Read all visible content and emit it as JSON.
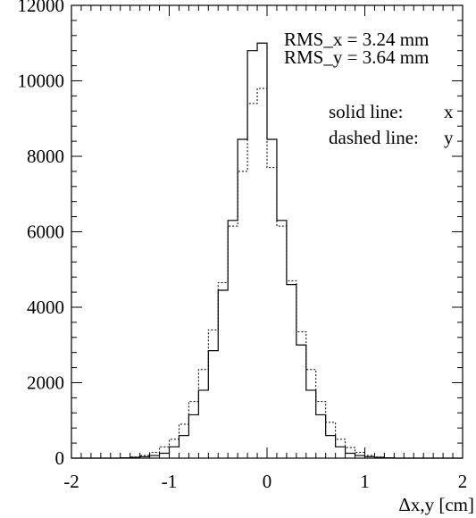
{
  "chart_data": {
    "type": "line",
    "xlabel": "Δx,y  [cm]",
    "ylabel": "",
    "xlim": [
      -2,
      2
    ],
    "ylim": [
      0,
      12000
    ],
    "x_ticks": [
      -2,
      -1,
      0,
      1,
      2
    ],
    "x_tick_labels": [
      "-2",
      "-1",
      "0",
      "1",
      "2"
    ],
    "y_ticks": [
      0,
      2000,
      4000,
      6000,
      8000,
      10000,
      12000
    ],
    "y_tick_labels": [
      "0",
      "2000",
      "4000",
      "6000",
      "8000",
      "10000",
      "12000"
    ],
    "bin_edges": [
      -2.0,
      -1.9,
      -1.8,
      -1.7,
      -1.6,
      -1.5,
      -1.4,
      -1.3,
      -1.2,
      -1.1,
      -1.0,
      -0.9,
      -0.8,
      -0.7,
      -0.6,
      -0.5,
      -0.4,
      -0.3,
      -0.2,
      -0.1,
      0.0,
      0.1,
      0.2,
      0.3,
      0.4,
      0.5,
      0.6,
      0.7,
      0.8,
      0.9,
      1.0,
      1.1,
      1.2,
      1.3,
      1.4,
      1.5,
      1.6,
      1.7,
      1.8,
      1.9,
      2.0
    ],
    "series": [
      {
        "name": "x",
        "style": "solid",
        "values": [
          0,
          0,
          0,
          0,
          0,
          10,
          20,
          40,
          70,
          130,
          300,
          600,
          1150,
          1800,
          2850,
          4450,
          6300,
          8450,
          10800,
          11000,
          8450,
          6300,
          4600,
          3000,
          1800,
          1150,
          600,
          300,
          130,
          70,
          40,
          20,
          10,
          0,
          0,
          0,
          0,
          0,
          0,
          0
        ]
      },
      {
        "name": "y",
        "style": "dashed",
        "values": [
          0,
          0,
          0,
          0,
          0,
          10,
          30,
          70,
          150,
          300,
          500,
          900,
          1500,
          2350,
          3400,
          4650,
          6150,
          7600,
          9400,
          9800,
          7700,
          6150,
          4700,
          3350,
          2350,
          1500,
          950,
          500,
          280,
          150,
          70,
          30,
          10,
          0,
          0,
          0,
          0,
          0,
          0,
          0
        ]
      }
    ]
  },
  "annotations": {
    "rms_x": "RMS_x =  3.24 mm",
    "rms_y": "RMS_y =  3.64 mm",
    "solid_label": "solid line:",
    "solid_value": "x",
    "dashed_label": "dashed line:",
    "dashed_value": "y"
  }
}
